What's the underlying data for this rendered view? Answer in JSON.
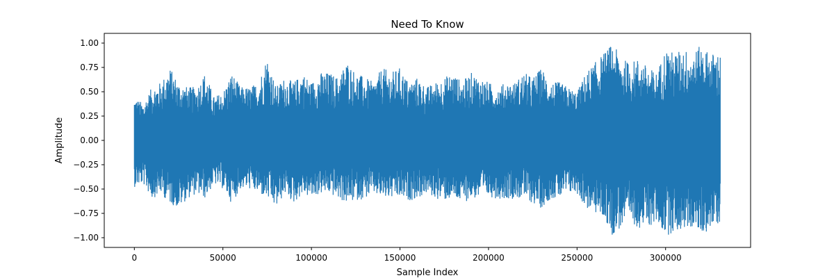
{
  "chart_data": {
    "type": "line",
    "title": "Need To Know",
    "xlabel": "Sample Index",
    "ylabel": "Amplitude",
    "xlim": [
      -17000,
      348000
    ],
    "ylim": [
      -1.1,
      1.1
    ],
    "x_ticks": [
      0,
      50000,
      100000,
      150000,
      200000,
      250000,
      300000
    ],
    "x_tick_labels": [
      "0",
      "50000",
      "100000",
      "150000",
      "200000",
      "250000",
      "300000"
    ],
    "y_ticks": [
      -1.0,
      -0.75,
      -0.5,
      -0.25,
      0.0,
      0.25,
      0.5,
      0.75,
      1.0
    ],
    "y_tick_labels": [
      "−1.00",
      "−0.75",
      "−0.50",
      "−0.25",
      "0.00",
      "0.25",
      "0.50",
      "0.75",
      "1.00"
    ],
    "grid": false,
    "series": [
      {
        "name": "",
        "color": "#1f77b4",
        "x_start": 0,
        "x_end": 331000,
        "envelope_x": [
          0,
          5000,
          10000,
          15000,
          20000,
          25000,
          30000,
          35000,
          40000,
          45000,
          50000,
          55000,
          60000,
          65000,
          70000,
          75000,
          80000,
          85000,
          90000,
          95000,
          100000,
          105000,
          110000,
          115000,
          120000,
          125000,
          130000,
          135000,
          140000,
          145000,
          150000,
          155000,
          160000,
          165000,
          170000,
          175000,
          180000,
          185000,
          190000,
          195000,
          200000,
          205000,
          210000,
          215000,
          220000,
          225000,
          230000,
          235000,
          240000,
          245000,
          250000,
          255000,
          260000,
          265000,
          270000,
          275000,
          280000,
          285000,
          290000,
          295000,
          300000,
          305000,
          310000,
          315000,
          320000,
          325000,
          331000
        ],
        "envelope_max": [
          0.45,
          0.38,
          0.55,
          0.6,
          0.75,
          0.6,
          0.55,
          0.55,
          0.7,
          0.45,
          0.5,
          0.7,
          0.55,
          0.55,
          0.6,
          0.87,
          0.55,
          0.65,
          0.6,
          0.7,
          0.6,
          0.7,
          0.7,
          0.65,
          0.82,
          0.7,
          0.65,
          0.6,
          0.75,
          0.7,
          0.75,
          0.6,
          0.65,
          0.55,
          0.6,
          0.65,
          0.7,
          0.6,
          0.7,
          0.65,
          0.6,
          0.55,
          0.6,
          0.6,
          0.7,
          0.65,
          0.75,
          0.6,
          0.6,
          0.55,
          0.5,
          0.7,
          0.8,
          0.9,
          1.0,
          0.85,
          0.8,
          0.85,
          0.75,
          0.7,
          0.95,
          0.9,
          0.95,
          0.9,
          0.98,
          0.9,
          0.9
        ],
        "envelope_min": [
          -0.48,
          -0.45,
          -0.6,
          -0.55,
          -0.65,
          -0.7,
          -0.6,
          -0.55,
          -0.6,
          -0.45,
          -0.5,
          -0.65,
          -0.5,
          -0.5,
          -0.55,
          -0.6,
          -0.7,
          -0.55,
          -0.65,
          -0.55,
          -0.6,
          -0.55,
          -0.55,
          -0.6,
          -0.65,
          -0.62,
          -0.6,
          -0.55,
          -0.6,
          -0.6,
          -0.6,
          -0.62,
          -0.6,
          -0.55,
          -0.6,
          -0.62,
          -0.6,
          -0.65,
          -0.6,
          -0.6,
          -0.58,
          -0.6,
          -0.6,
          -0.6,
          -0.6,
          -0.65,
          -0.7,
          -0.6,
          -0.6,
          -0.55,
          -0.55,
          -0.7,
          -0.75,
          -0.8,
          -0.98,
          -0.9,
          -0.85,
          -0.9,
          -0.9,
          -0.85,
          -0.98,
          -0.95,
          -0.92,
          -0.9,
          -0.97,
          -0.92,
          -0.85
        ]
      }
    ]
  }
}
